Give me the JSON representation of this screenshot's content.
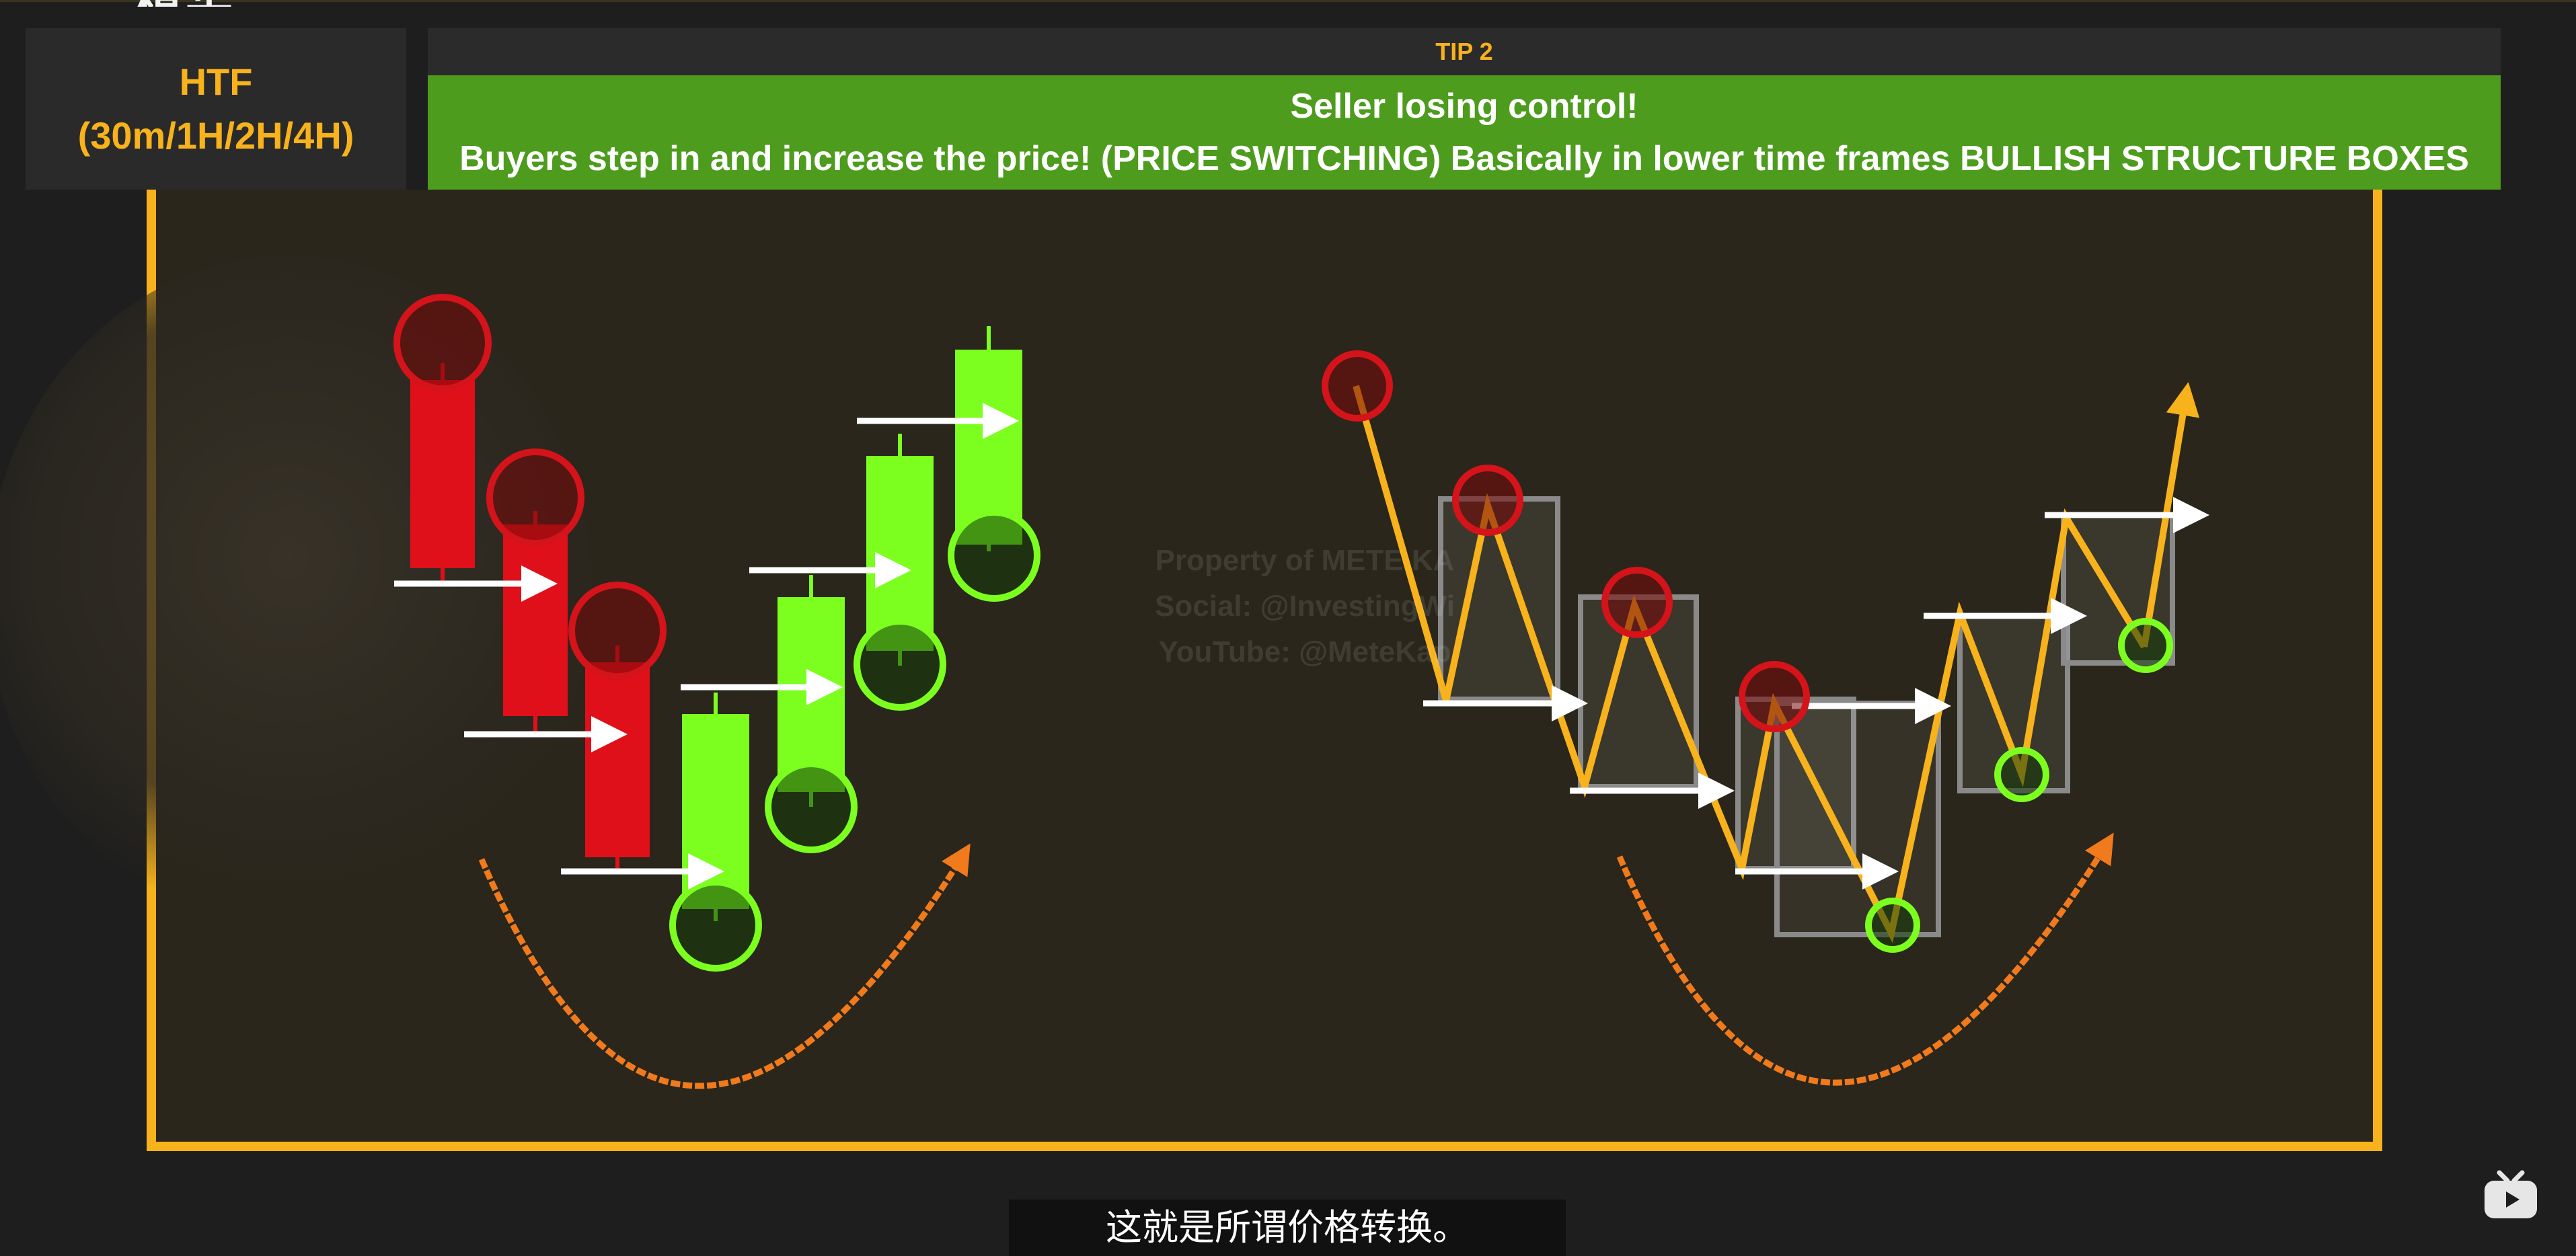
{
  "htf": {
    "line1": "HTF",
    "line2": "(30m/1H/2H/4H)"
  },
  "tip": {
    "label": "TIP 2"
  },
  "banner": {
    "line1": "Seller losing control!",
    "line2": "Buyers step in and increase the price! (PRICE SWITCHING) Basically in lower time frames BULLISH STRUCTURE BOXES"
  },
  "watermark": {
    "line1": "Property of METE KA",
    "line2": "Social: @InvestingWi",
    "line3": "YouTube: @MeteKap"
  },
  "subtitle": "这就是所谓价格转换。",
  "colors": {
    "accent": "#f7b21c",
    "banner_green": "#4d9c1d",
    "bear_red": "#e0101a",
    "bull_green": "#7cff1f",
    "arc_orange": "#f07a1c"
  },
  "icons": {
    "player": "tv-icon",
    "logo": "logo-fragment"
  },
  "partial_logo_text": "精华"
}
